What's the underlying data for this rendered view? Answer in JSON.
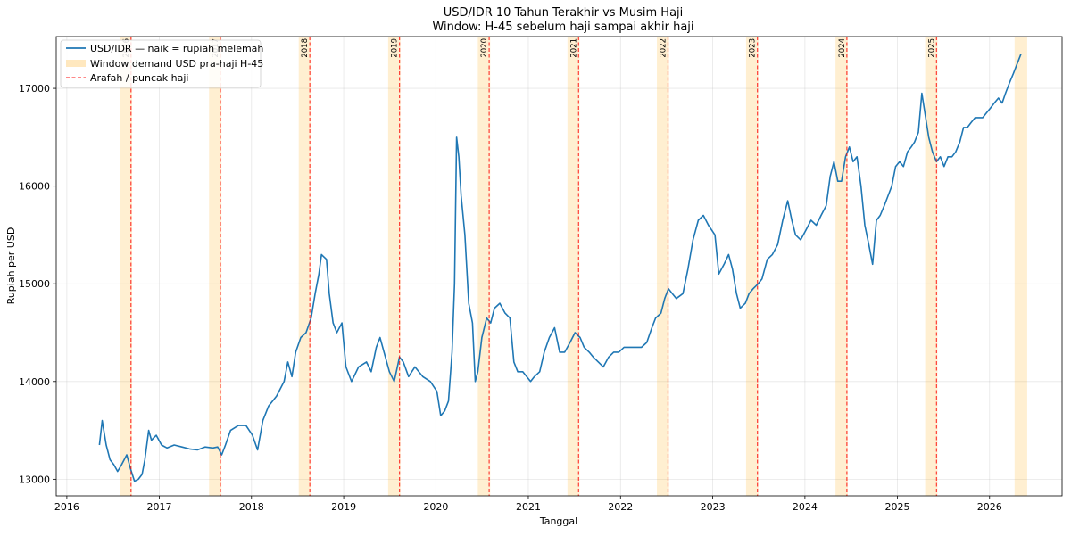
{
  "chart_data": {
    "type": "line",
    "title": "USD/IDR 10 Tahun Terakhir vs Musim Haji",
    "subtitle": "Window: H-45 sebelum haji sampai akhir haji",
    "xlabel": "Tanggal",
    "ylabel": "Rupiah per USD",
    "xlim": [
      "2015-11-20",
      "2026-10-15"
    ],
    "ylim": [
      12830,
      17530
    ],
    "x_ticks": [
      "2016",
      "2017",
      "2018",
      "2019",
      "2020",
      "2021",
      "2022",
      "2023",
      "2024",
      "2025",
      "2026"
    ],
    "y_ticks": [
      13000,
      14000,
      15000,
      16000,
      17000
    ],
    "y_tick_labels": [
      "13000",
      "14000",
      "15000",
      "16000",
      "17000"
    ],
    "grid": true,
    "legend": {
      "placement": "top-left",
      "entries": [
        {
          "label": "USD/IDR — naik = rupiah melemah",
          "kind": "line",
          "color": "#1f77b4"
        },
        {
          "label": "Window demand USD pra-haji H-45",
          "kind": "patch",
          "color": "#ffa500"
        },
        {
          "label": "Arafah / puncak haji",
          "kind": "dashed",
          "color": "#ff0000"
        }
      ]
    },
    "hajj_windows": [
      {
        "year_label": "2016",
        "start": "2016-07-28",
        "end": "2016-09-15",
        "arafah": "2016-09-11"
      },
      {
        "year_label": "2017",
        "start": "2017-07-17",
        "end": "2017-09-04",
        "arafah": "2017-08-31"
      },
      {
        "year_label": "2018",
        "start": "2018-07-07",
        "end": "2018-08-24",
        "arafah": "2018-08-20"
      },
      {
        "year_label": "2019",
        "start": "2019-06-26",
        "end": "2019-08-14",
        "arafah": "2019-08-10"
      },
      {
        "year_label": "2020",
        "start": "2020-06-15",
        "end": "2020-08-03",
        "arafah": "2020-07-30"
      },
      {
        "year_label": "2021",
        "start": "2021-06-05",
        "end": "2021-07-23",
        "arafah": "2021-07-19"
      },
      {
        "year_label": "2022",
        "start": "2022-05-25",
        "end": "2022-07-12",
        "arafah": "2022-07-08"
      },
      {
        "year_label": "2023",
        "start": "2023-05-13",
        "end": "2023-07-01",
        "arafah": "2023-06-27"
      },
      {
        "year_label": "2024",
        "start": "2024-05-01",
        "end": "2024-06-19",
        "arafah": "2024-06-15"
      },
      {
        "year_label": "2025",
        "start": "2025-04-21",
        "end": "2025-06-09",
        "arafah": "2025-06-05"
      },
      {
        "year_label": "",
        "start": "2026-04-10",
        "end": "2026-05-30",
        "arafah": ""
      }
    ],
    "series": [
      {
        "name": "USD/IDR — naik = rupiah melemah",
        "color": "#1f77b4",
        "points": [
          [
            "2016-05-09",
            13350
          ],
          [
            "2016-05-20",
            13600
          ],
          [
            "2016-06-05",
            13350
          ],
          [
            "2016-06-20",
            13200
          ],
          [
            "2016-07-05",
            13150
          ],
          [
            "2016-07-20",
            13080
          ],
          [
            "2016-08-05",
            13150
          ],
          [
            "2016-08-25",
            13250
          ],
          [
            "2016-09-10",
            13100
          ],
          [
            "2016-09-25",
            12980
          ],
          [
            "2016-10-10",
            13000
          ],
          [
            "2016-10-25",
            13050
          ],
          [
            "2016-11-05",
            13200
          ],
          [
            "2016-11-20",
            13500
          ],
          [
            "2016-12-01",
            13400
          ],
          [
            "2016-12-20",
            13450
          ],
          [
            "2017-01-10",
            13350
          ],
          [
            "2017-02-01",
            13320
          ],
          [
            "2017-03-01",
            13350
          ],
          [
            "2017-04-01",
            13330
          ],
          [
            "2017-05-01",
            13310
          ],
          [
            "2017-06-01",
            13300
          ],
          [
            "2017-07-01",
            13330
          ],
          [
            "2017-08-01",
            13320
          ],
          [
            "2017-08-20",
            13330
          ],
          [
            "2017-09-05",
            13250
          ],
          [
            "2017-09-20",
            13350
          ],
          [
            "2017-10-10",
            13500
          ],
          [
            "2017-11-10",
            13550
          ],
          [
            "2017-12-10",
            13550
          ],
          [
            "2018-01-05",
            13450
          ],
          [
            "2018-01-25",
            13300
          ],
          [
            "2018-02-15",
            13600
          ],
          [
            "2018-03-10",
            13750
          ],
          [
            "2018-04-10",
            13850
          ],
          [
            "2018-05-10",
            14000
          ],
          [
            "2018-05-25",
            14200
          ],
          [
            "2018-06-10",
            14050
          ],
          [
            "2018-06-25",
            14300
          ],
          [
            "2018-07-15",
            14450
          ],
          [
            "2018-08-05",
            14500
          ],
          [
            "2018-08-25",
            14650
          ],
          [
            "2018-09-10",
            14900
          ],
          [
            "2018-09-25",
            15100
          ],
          [
            "2018-10-05",
            15300
          ],
          [
            "2018-10-25",
            15250
          ],
          [
            "2018-11-05",
            14900
          ],
          [
            "2018-11-20",
            14600
          ],
          [
            "2018-12-05",
            14500
          ],
          [
            "2018-12-25",
            14600
          ],
          [
            "2019-01-10",
            14150
          ],
          [
            "2019-02-01",
            14000
          ],
          [
            "2019-03-01",
            14150
          ],
          [
            "2019-04-01",
            14200
          ],
          [
            "2019-04-20",
            14100
          ],
          [
            "2019-05-10",
            14350
          ],
          [
            "2019-05-25",
            14450
          ],
          [
            "2019-06-15",
            14250
          ],
          [
            "2019-07-01",
            14100
          ],
          [
            "2019-07-20",
            14000
          ],
          [
            "2019-08-10",
            14250
          ],
          [
            "2019-08-25",
            14200
          ],
          [
            "2019-09-15",
            14050
          ],
          [
            "2019-10-10",
            14150
          ],
          [
            "2019-11-10",
            14050
          ],
          [
            "2019-12-10",
            14000
          ],
          [
            "2020-01-05",
            13900
          ],
          [
            "2020-01-20",
            13650
          ],
          [
            "2020-02-05",
            13700
          ],
          [
            "2020-02-20",
            13800
          ],
          [
            "2020-03-05",
            14300
          ],
          [
            "2020-03-15",
            15000
          ],
          [
            "2020-03-23",
            16500
          ],
          [
            "2020-04-01",
            16300
          ],
          [
            "2020-04-10",
            15900
          ],
          [
            "2020-04-25",
            15500
          ],
          [
            "2020-05-10",
            14800
          ],
          [
            "2020-05-25",
            14600
          ],
          [
            "2020-06-05",
            14000
          ],
          [
            "2020-06-15",
            14100
          ],
          [
            "2020-07-01",
            14450
          ],
          [
            "2020-07-20",
            14650
          ],
          [
            "2020-08-05",
            14600
          ],
          [
            "2020-08-20",
            14750
          ],
          [
            "2020-09-10",
            14800
          ],
          [
            "2020-10-01",
            14700
          ],
          [
            "2020-10-20",
            14650
          ],
          [
            "2020-11-05",
            14200
          ],
          [
            "2020-11-20",
            14100
          ],
          [
            "2020-12-10",
            14100
          ],
          [
            "2021-01-10",
            14000
          ],
          [
            "2021-01-25",
            14050
          ],
          [
            "2021-02-15",
            14100
          ],
          [
            "2021-03-05",
            14300
          ],
          [
            "2021-03-25",
            14450
          ],
          [
            "2021-04-15",
            14550
          ],
          [
            "2021-05-05",
            14300
          ],
          [
            "2021-05-25",
            14300
          ],
          [
            "2021-06-15",
            14400
          ],
          [
            "2021-07-05",
            14500
          ],
          [
            "2021-07-25",
            14450
          ],
          [
            "2021-08-10",
            14350
          ],
          [
            "2021-08-30",
            14300
          ],
          [
            "2021-09-15",
            14250
          ],
          [
            "2021-10-05",
            14200
          ],
          [
            "2021-10-25",
            14150
          ],
          [
            "2021-11-15",
            14250
          ],
          [
            "2021-12-05",
            14300
          ],
          [
            "2021-12-25",
            14300
          ],
          [
            "2022-01-15",
            14350
          ],
          [
            "2022-02-05",
            14350
          ],
          [
            "2022-03-01",
            14350
          ],
          [
            "2022-03-25",
            14350
          ],
          [
            "2022-04-15",
            14400
          ],
          [
            "2022-05-05",
            14550
          ],
          [
            "2022-05-20",
            14650
          ],
          [
            "2022-06-10",
            14700
          ],
          [
            "2022-06-25",
            14850
          ],
          [
            "2022-07-10",
            14950
          ],
          [
            "2022-07-25",
            14900
          ],
          [
            "2022-08-10",
            14850
          ],
          [
            "2022-09-05",
            14900
          ],
          [
            "2022-09-25",
            15150
          ],
          [
            "2022-10-15",
            15450
          ],
          [
            "2022-11-05",
            15650
          ],
          [
            "2022-11-25",
            15700
          ],
          [
            "2022-12-15",
            15600
          ],
          [
            "2023-01-10",
            15500
          ],
          [
            "2023-01-25",
            15100
          ],
          [
            "2023-02-15",
            15200
          ],
          [
            "2023-03-05",
            15300
          ],
          [
            "2023-03-20",
            15150
          ],
          [
            "2023-04-05",
            14900
          ],
          [
            "2023-04-20",
            14750
          ],
          [
            "2023-05-10",
            14800
          ],
          [
            "2023-05-25",
            14900
          ],
          [
            "2023-06-10",
            14950
          ],
          [
            "2023-06-30",
            15000
          ],
          [
            "2023-07-15",
            15050
          ],
          [
            "2023-08-05",
            15250
          ],
          [
            "2023-08-25",
            15300
          ],
          [
            "2023-09-15",
            15400
          ],
          [
            "2023-10-05",
            15650
          ],
          [
            "2023-10-25",
            15850
          ],
          [
            "2023-11-10",
            15650
          ],
          [
            "2023-11-25",
            15500
          ],
          [
            "2023-12-15",
            15450
          ],
          [
            "2024-01-05",
            15550
          ],
          [
            "2024-01-25",
            15650
          ],
          [
            "2024-02-15",
            15600
          ],
          [
            "2024-03-05",
            15700
          ],
          [
            "2024-03-25",
            15800
          ],
          [
            "2024-04-10",
            16100
          ],
          [
            "2024-04-25",
            16250
          ],
          [
            "2024-05-10",
            16050
          ],
          [
            "2024-05-25",
            16050
          ],
          [
            "2024-06-10",
            16300
          ],
          [
            "2024-06-25",
            16400
          ],
          [
            "2024-07-10",
            16250
          ],
          [
            "2024-07-25",
            16300
          ],
          [
            "2024-08-10",
            16000
          ],
          [
            "2024-08-25",
            15600
          ],
          [
            "2024-09-10",
            15400
          ],
          [
            "2024-09-25",
            15200
          ],
          [
            "2024-10-10",
            15650
          ],
          [
            "2024-10-25",
            15700
          ],
          [
            "2024-11-10",
            15800
          ],
          [
            "2024-11-25",
            15900
          ],
          [
            "2024-12-10",
            16000
          ],
          [
            "2024-12-25",
            16200
          ],
          [
            "2025-01-10",
            16250
          ],
          [
            "2025-01-25",
            16200
          ],
          [
            "2025-02-10",
            16350
          ],
          [
            "2025-02-25",
            16400
          ],
          [
            "2025-03-10",
            16450
          ],
          [
            "2025-03-25",
            16550
          ],
          [
            "2025-04-08",
            16950
          ],
          [
            "2025-04-20",
            16750
          ],
          [
            "2025-05-05",
            16500
          ],
          [
            "2025-05-20",
            16350
          ],
          [
            "2025-06-05",
            16250
          ],
          [
            "2025-06-20",
            16300
          ],
          [
            "2025-07-05",
            16200
          ],
          [
            "2025-07-20",
            16300
          ],
          [
            "2025-08-05",
            16300
          ],
          [
            "2025-08-20",
            16350
          ],
          [
            "2025-09-05",
            16450
          ],
          [
            "2025-09-20",
            16600
          ],
          [
            "2025-10-05",
            16600
          ],
          [
            "2025-10-20",
            16650
          ],
          [
            "2025-11-05",
            16700
          ],
          [
            "2025-11-20",
            16700
          ],
          [
            "2025-12-05",
            16700
          ],
          [
            "2025-12-20",
            16750
          ],
          [
            "2026-01-05",
            16800
          ],
          [
            "2026-01-20",
            16850
          ],
          [
            "2026-02-05",
            16900
          ],
          [
            "2026-02-20",
            16850
          ],
          [
            "2026-03-05",
            16950
          ],
          [
            "2026-03-20",
            17050
          ],
          [
            "2026-04-05",
            17150
          ],
          [
            "2026-04-20",
            17250
          ],
          [
            "2026-05-05",
            17350
          ]
        ]
      }
    ]
  }
}
